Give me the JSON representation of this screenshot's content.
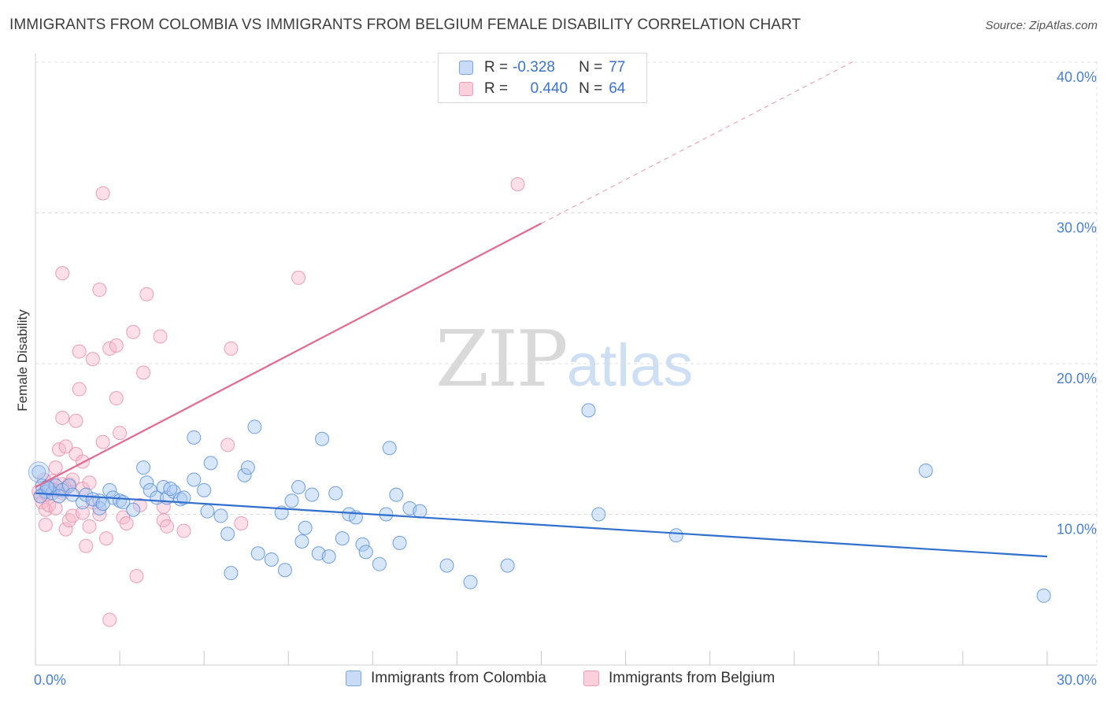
{
  "header": {
    "title": "IMMIGRANTS FROM COLOMBIA VS IMMIGRANTS FROM BELGIUM FEMALE DISABILITY CORRELATION CHART",
    "source": "Source: ZipAtlas.com"
  },
  "watermark": {
    "zip": "ZIP",
    "atlas": "atlas"
  },
  "legend": {
    "rows": [
      {
        "r_label": "R =",
        "r_value": "-0.328",
        "n_label": "N =",
        "n_value": "77",
        "color": "#a9c8f3"
      },
      {
        "r_label": "R =",
        "r_value": "0.440",
        "n_label": "N =",
        "n_value": "64",
        "color": "#f8b9cc"
      }
    ]
  },
  "bottom_legend": {
    "colombia": "Immigrants from Colombia",
    "belgium": "Immigrants from Belgium"
  },
  "colors": {
    "colombia_fill": "#a9c8f3",
    "colombia_stroke": "#5a8fd8",
    "colombia_line": "#2f6fd0",
    "belgium_fill": "#f8b9cc",
    "belgium_stroke": "#e98aa7",
    "belgium_line": "#e06a92",
    "grid": "#dcdcdc",
    "tick_text": "#4a7fd0"
  },
  "chart_data": {
    "type": "scatter",
    "title": "IMMIGRANTS FROM COLOMBIA VS IMMIGRANTS FROM BELGIUM FEMALE DISABILITY CORRELATION CHART",
    "xlabel": "",
    "ylabel": "Female Disability",
    "xlim": [
      0,
      30
    ],
    "ylim": [
      0,
      40
    ],
    "x_tick_labels": [
      "0.0%",
      "30.0%"
    ],
    "y_ticks": [
      10,
      20,
      30,
      40
    ],
    "y_tick_labels": [
      "10.0%",
      "20.0%",
      "30.0%",
      "40.0%"
    ],
    "grid": true,
    "legend_position": "top-center",
    "series": [
      {
        "name": "Immigrants from Colombia",
        "r": -0.328,
        "n": 77,
        "trend": {
          "x": [
            0,
            30
          ],
          "y": [
            11.4,
            7.2
          ]
        },
        "points": [
          [
            0.1,
            12.8
          ],
          [
            0.2,
            11.9
          ],
          [
            0.3,
            11.5
          ],
          [
            0.4,
            11.7
          ],
          [
            0.5,
            11.4
          ],
          [
            0.6,
            11.9
          ],
          [
            0.8,
            11.6
          ],
          [
            1.0,
            11.9
          ],
          [
            1.1,
            11.3
          ],
          [
            1.4,
            10.8
          ],
          [
            1.5,
            11.3
          ],
          [
            1.9,
            10.9
          ],
          [
            1.9,
            10.4
          ],
          [
            2.2,
            11.6
          ],
          [
            2.3,
            11.1
          ],
          [
            2.5,
            10.9
          ],
          [
            2.6,
            10.8
          ],
          [
            2.9,
            10.3
          ],
          [
            3.2,
            13.1
          ],
          [
            3.3,
            12.1
          ],
          [
            3.4,
            11.6
          ],
          [
            3.6,
            11.1
          ],
          [
            3.8,
            11.8
          ],
          [
            3.9,
            11.1
          ],
          [
            4.1,
            11.5
          ],
          [
            4.3,
            11.0
          ],
          [
            4.4,
            11.1
          ],
          [
            4.7,
            12.3
          ],
          [
            4.7,
            15.1
          ],
          [
            5.0,
            11.6
          ],
          [
            5.1,
            10.2
          ],
          [
            5.2,
            13.4
          ],
          [
            5.5,
            9.9
          ],
          [
            5.7,
            8.7
          ],
          [
            5.8,
            6.1
          ],
          [
            6.2,
            12.6
          ],
          [
            6.3,
            13.1
          ],
          [
            6.5,
            15.8
          ],
          [
            6.6,
            7.4
          ],
          [
            7.0,
            7.0
          ],
          [
            7.3,
            10.1
          ],
          [
            7.4,
            6.3
          ],
          [
            7.6,
            10.9
          ],
          [
            7.8,
            11.8
          ],
          [
            7.9,
            8.2
          ],
          [
            8.0,
            9.1
          ],
          [
            8.2,
            11.3
          ],
          [
            8.4,
            7.4
          ],
          [
            8.5,
            15.0
          ],
          [
            8.7,
            7.2
          ],
          [
            8.9,
            11.4
          ],
          [
            9.1,
            8.4
          ],
          [
            9.3,
            10.0
          ],
          [
            9.5,
            9.8
          ],
          [
            9.7,
            8.0
          ],
          [
            9.8,
            7.5
          ],
          [
            10.2,
            6.7
          ],
          [
            10.4,
            10.0
          ],
          [
            10.5,
            14.4
          ],
          [
            10.7,
            11.3
          ],
          [
            10.8,
            8.1
          ],
          [
            11.1,
            10.4
          ],
          [
            11.4,
            10.2
          ],
          [
            12.2,
            6.6
          ],
          [
            12.9,
            5.5
          ],
          [
            14.0,
            6.6
          ],
          [
            16.4,
            16.9
          ],
          [
            16.7,
            10.0
          ],
          [
            19.0,
            8.6
          ],
          [
            26.4,
            12.9
          ],
          [
            29.9,
            4.6
          ],
          [
            0.15,
            11.2
          ],
          [
            0.35,
            11.8
          ],
          [
            0.7,
            11.2
          ],
          [
            1.7,
            11.0
          ],
          [
            2.0,
            10.7
          ],
          [
            4.0,
            11.7
          ]
        ]
      },
      {
        "name": "Immigrants from Belgium",
        "r": 0.44,
        "n": 64,
        "trend": {
          "x": [
            0,
            15
          ],
          "y": [
            11.8,
            29.3
          ]
        },
        "trend_dashed": {
          "x": [
            15,
            24.3
          ],
          "y": [
            29.3,
            40.1
          ]
        },
        "points": [
          [
            0.1,
            11.5
          ],
          [
            0.15,
            11.2
          ],
          [
            0.2,
            10.8
          ],
          [
            0.3,
            10.3
          ],
          [
            0.3,
            9.3
          ],
          [
            0.4,
            11.9
          ],
          [
            0.4,
            10.6
          ],
          [
            0.5,
            12.2
          ],
          [
            0.6,
            10.4
          ],
          [
            0.6,
            13.1
          ],
          [
            0.7,
            14.3
          ],
          [
            0.8,
            11.4
          ],
          [
            0.8,
            16.4
          ],
          [
            0.8,
            12.0
          ],
          [
            0.8,
            26.0
          ],
          [
            0.9,
            9.0
          ],
          [
            0.9,
            14.5
          ],
          [
            1.0,
            9.6
          ],
          [
            1.0,
            12.0
          ],
          [
            1.1,
            9.9
          ],
          [
            1.2,
            14.0
          ],
          [
            1.2,
            16.2
          ],
          [
            1.3,
            18.3
          ],
          [
            1.3,
            20.8
          ],
          [
            1.4,
            13.5
          ],
          [
            1.4,
            11.7
          ],
          [
            1.4,
            10.1
          ],
          [
            1.5,
            7.9
          ],
          [
            1.6,
            9.2
          ],
          [
            1.7,
            20.3
          ],
          [
            1.7,
            10.8
          ],
          [
            1.9,
            10.0
          ],
          [
            2.0,
            14.8
          ],
          [
            1.9,
            24.9
          ],
          [
            2.0,
            31.3
          ],
          [
            2.1,
            8.4
          ],
          [
            2.2,
            21.0
          ],
          [
            2.2,
            3.0
          ],
          [
            2.4,
            21.2
          ],
          [
            2.4,
            17.7
          ],
          [
            2.5,
            15.4
          ],
          [
            2.6,
            9.8
          ],
          [
            2.7,
            9.4
          ],
          [
            2.9,
            22.1
          ],
          [
            3.0,
            5.9
          ],
          [
            3.1,
            10.6
          ],
          [
            3.2,
            19.4
          ],
          [
            3.3,
            24.6
          ],
          [
            3.7,
            21.8
          ],
          [
            3.8,
            9.6
          ],
          [
            3.8,
            10.5
          ],
          [
            3.9,
            9.2
          ],
          [
            4.4,
            8.9
          ],
          [
            5.7,
            14.6
          ],
          [
            5.8,
            21.0
          ],
          [
            6.1,
            9.4
          ],
          [
            7.8,
            25.7
          ],
          [
            14.3,
            31.9
          ],
          [
            0.25,
            12.3
          ],
          [
            0.55,
            11.6
          ],
          [
            0.9,
            11.7
          ],
          [
            1.1,
            12.3
          ],
          [
            0.35,
            11.3
          ],
          [
            1.6,
            12.1
          ]
        ]
      }
    ]
  }
}
